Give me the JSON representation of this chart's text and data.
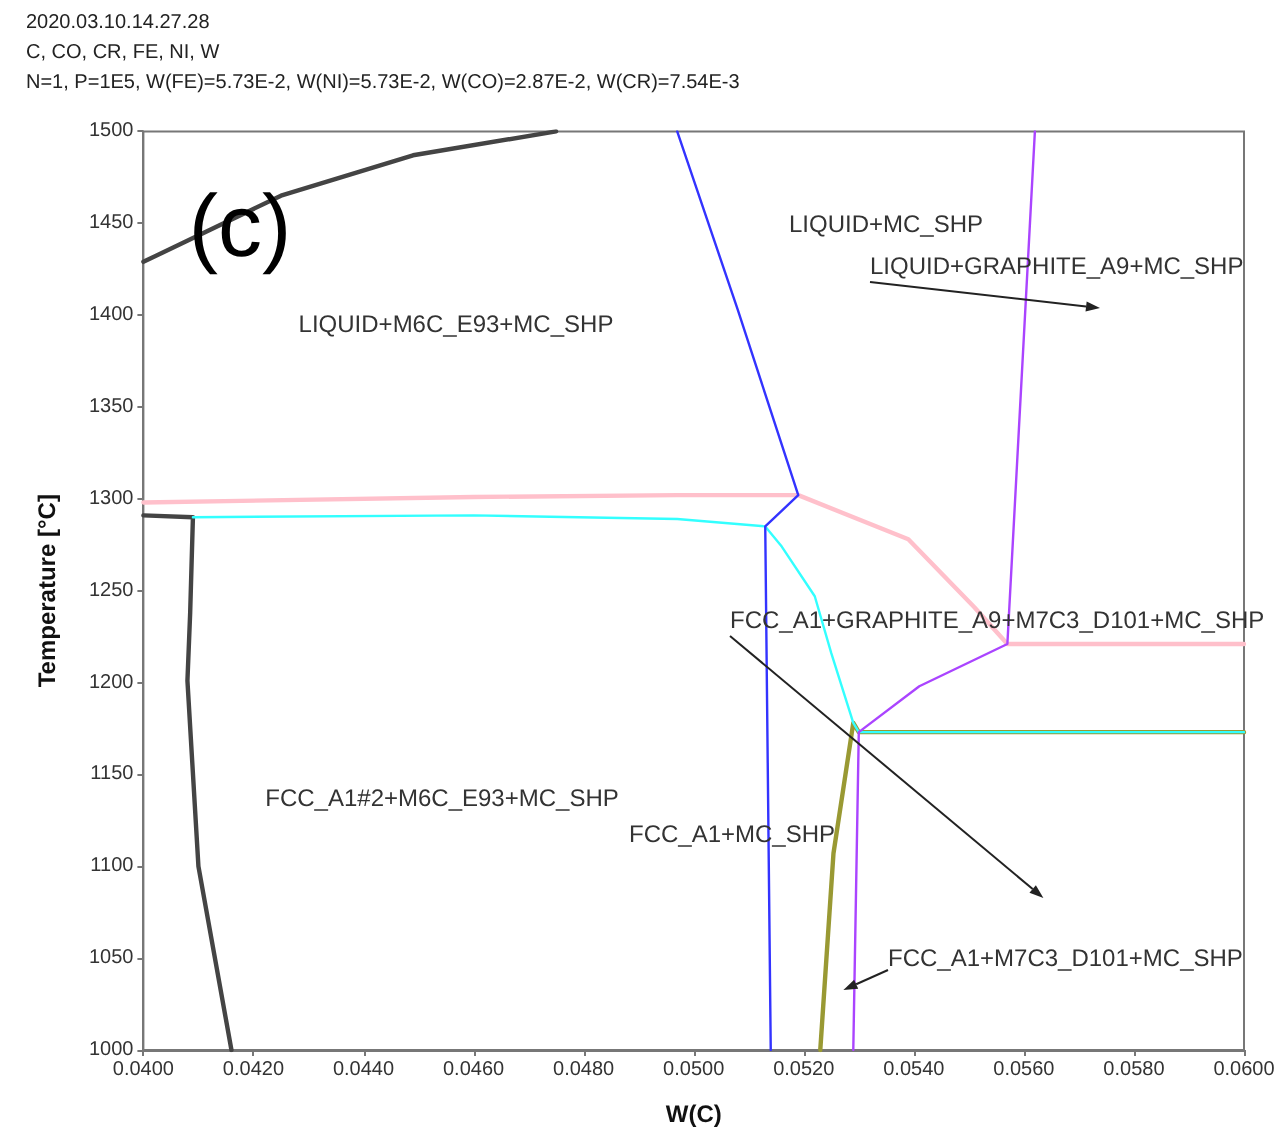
{
  "chart_data": {
    "type": "line",
    "title": "2020.03.10.14.27.28",
    "subtitle": "C, CO, CR, FE, NI, W\nN=1, P=1E5, W(FE)=5.73E-2, W(NI)=5.73E-2, W(CO)=2.87E-2, W(CR)=7.54E-3",
    "xlabel": "W(C)",
    "ylabel": "Temperature [°C]",
    "xlim": [
      0.04,
      0.06
    ],
    "xticks": [
      {
        "value": 0.04,
        "label": "0.0400"
      },
      {
        "value": 0.042,
        "label": "0.0420"
      },
      {
        "value": 0.044,
        "label": "0.0440"
      },
      {
        "value": 0.046,
        "label": "0.0460"
      },
      {
        "value": 0.048,
        "label": "0.0480"
      },
      {
        "value": 0.05,
        "label": "0.0500"
      },
      {
        "value": 0.052,
        "label": "0.0520"
      },
      {
        "value": 0.054,
        "label": "0.0540"
      },
      {
        "value": 0.056,
        "label": "0.0560"
      },
      {
        "value": 0.058,
        "label": "0.0580"
      },
      {
        "value": 0.06,
        "label": "0.0600"
      }
    ],
    "ylim": [
      1000,
      1500
    ],
    "yticks": [
      1000,
      1050,
      1100,
      1150,
      1200,
      1250,
      1300,
      1350,
      1400,
      1450,
      1500
    ],
    "grid": false,
    "marker": "none",
    "line_style": "solid",
    "series": [
      {
        "color": "#444444",
        "x": [
          0.04,
          0.0425,
          0.0449,
          0.0475
        ],
        "values": [
          1429,
          1465,
          1487,
          1500
        ]
      },
      {
        "color": "#444444",
        "x": [
          0.04,
          0.0409,
          0.04085,
          0.0408,
          0.041,
          0.0416
        ],
        "values": [
          1291,
          1290,
          1238,
          1201,
          1100,
          1000
        ]
      },
      {
        "color": "#ffc0cb",
        "x": [
          0.04,
          0.046,
          0.0497,
          0.0519,
          0.0539,
          0.0551,
          0.0557,
          0.06
        ],
        "values": [
          1298,
          1301,
          1302,
          1302,
          1278,
          1241,
          1221,
          1221
        ]
      },
      {
        "color": "#999933",
        "x": [
          0.0523,
          0.05254,
          0.0529,
          0.053,
          0.06
        ],
        "values": [
          1000,
          1107,
          1178,
          1173,
          1173
        ]
      },
      {
        "color": "#33ffff",
        "x": [
          0.0409,
          0.046,
          0.0497,
          0.0513,
          0.0516,
          0.0522,
          0.0525,
          0.0529,
          0.053,
          0.06
        ],
        "values": [
          1290,
          1291,
          1289,
          1285,
          1274,
          1247,
          1216,
          1178,
          1173,
          1173
        ]
      },
      {
        "color": "#3333ff",
        "x": [
          0.0497,
          0.0508,
          0.0519,
          0.0513,
          0.0514
        ],
        "values": [
          1500,
          1403,
          1302,
          1285,
          1000
        ]
      },
      {
        "color": "#aa44ff",
        "x": [
          0.0562,
          0.0557,
          0.0541,
          0.053,
          0.0529
        ],
        "values": [
          1500,
          1221,
          1198,
          1173,
          1000
        ]
      }
    ],
    "annotations": [
      "(c)",
      "LIQUID+M6C_E93+MC_SHP",
      "LIQUID+MC_SHP",
      "FCC_A1#2+M6C_E93+MC_SHP",
      "FCC_A1+MC_SHP",
      "LIQUID+GRAPHITE_A9+MC_SHP",
      "FCC_A1+GRAPHITE_A9+M7C3_D101+MC_SHP",
      "FCC_A1+M7C3_D101+MC_SHP"
    ]
  }
}
